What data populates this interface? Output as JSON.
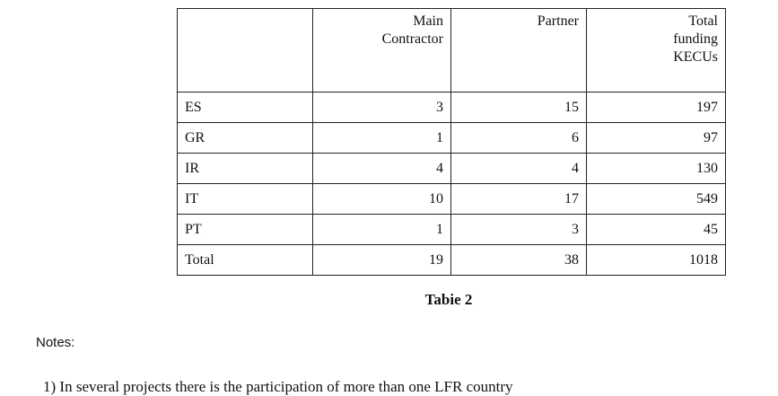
{
  "table": {
    "header": [
      "Main\nContractor",
      "Partner",
      "Total\nfunding\nKECUs"
    ],
    "rows": [
      [
        "ES",
        3,
        15,
        197
      ],
      [
        "GR",
        1,
        6,
        97
      ],
      [
        "IR",
        4,
        4,
        130
      ],
      [
        "IT",
        10,
        17,
        549
      ],
      [
        "PT",
        1,
        3,
        45
      ],
      [
        "Total",
        19,
        38,
        1018
      ]
    ]
  },
  "caption": "Tabie 2",
  "notes": {
    "heading": "Notes:",
    "items": [
      "1)  In several projects there is the participation of more than one LFR country"
    ]
  }
}
